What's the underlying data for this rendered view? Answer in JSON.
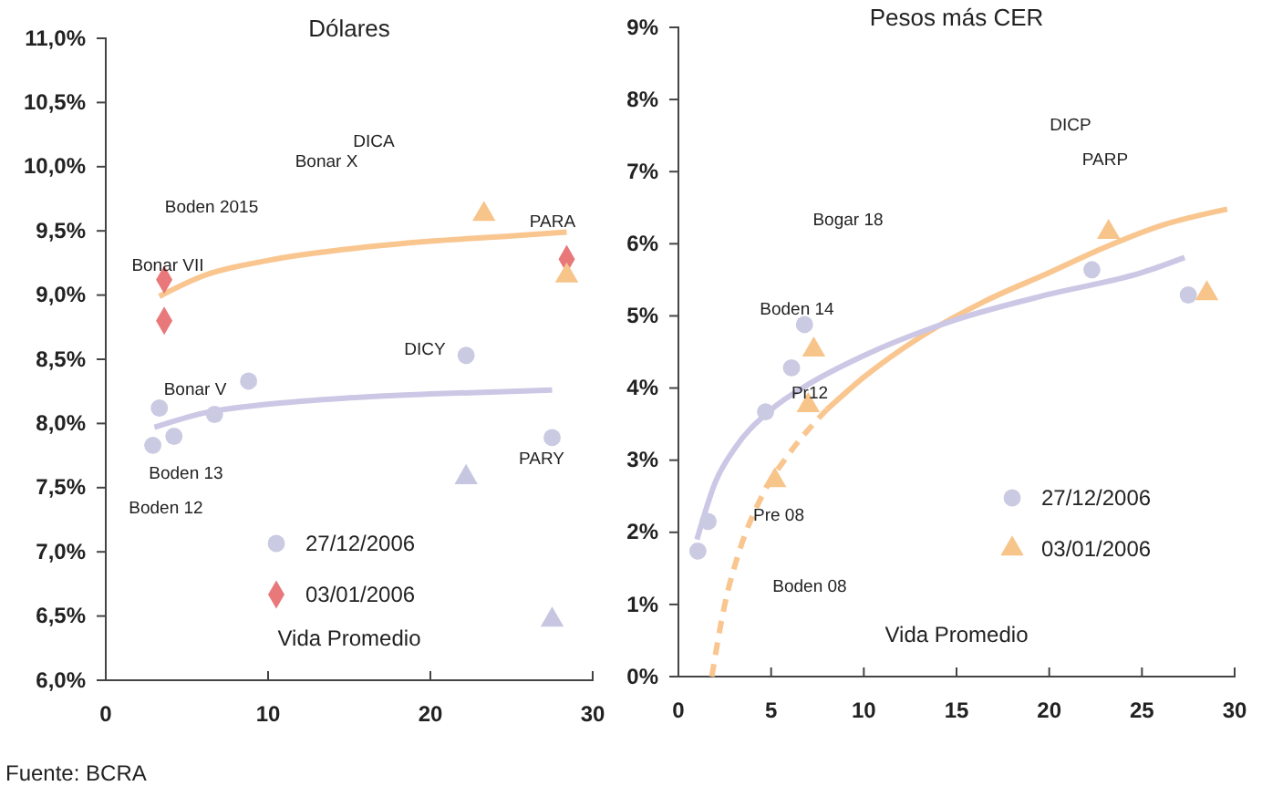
{
  "chart_data": [
    {
      "type": "scatter",
      "title": "Dólares",
      "xlabel": "Vida Promedio",
      "xlim": [
        0,
        30
      ],
      "xticks": [
        0,
        10,
        20,
        30
      ],
      "ylim": [
        6.0,
        11.0
      ],
      "yticks": [
        {
          "value": 6.0,
          "label": "6,0%"
        },
        {
          "value": 6.5,
          "label": "6,5%"
        },
        {
          "value": 7.0,
          "label": "7,0%"
        },
        {
          "value": 7.5,
          "label": "7,5%"
        },
        {
          "value": 8.0,
          "label": "8,0%"
        },
        {
          "value": 8.5,
          "label": "8,5%"
        },
        {
          "value": 9.0,
          "label": "9,0%"
        },
        {
          "value": 9.5,
          "label": "9,5%"
        },
        {
          "value": 10.0,
          "label": "10,0%"
        },
        {
          "value": 10.5,
          "label": "10,5%"
        },
        {
          "value": 11.0,
          "label": "11,0%"
        }
      ],
      "grid": false,
      "legend": "bottom",
      "series": [
        {
          "type": "line",
          "color": "#f9c690",
          "line_style": "solid",
          "x": [
            3.3,
            6,
            10,
            15,
            20,
            25,
            28.4
          ],
          "values": [
            8.99,
            9.15,
            9.27,
            9.36,
            9.42,
            9.46,
            9.49
          ]
        },
        {
          "type": "line",
          "color": "#cbc7e5",
          "line_style": "solid",
          "x": [
            3,
            6,
            10,
            15,
            20,
            27.5
          ],
          "values": [
            7.97,
            8.08,
            8.15,
            8.2,
            8.23,
            8.26
          ]
        },
        {
          "type": "scatter",
          "name": "27/12/2006",
          "color": "#cacae2",
          "marker": "circle",
          "x": [
            3.3,
            2.9,
            4.2,
            6.7,
            8.8,
            22.2,
            27.5
          ],
          "values": [
            8.12,
            7.83,
            7.9,
            8.07,
            8.33,
            8.53,
            7.89
          ]
        },
        {
          "type": "scatter",
          "name": "03/01/2006",
          "color": "#e8787a",
          "marker": "diamond",
          "x": [
            3.6,
            3.6,
            28.4
          ],
          "values": [
            9.12,
            8.8,
            9.28
          ]
        },
        {
          "type": "scatter",
          "color": "#f7c48a",
          "marker": "triangle",
          "x": [
            23.3,
            28.4
          ],
          "values": [
            9.63,
            9.15
          ]
        },
        {
          "type": "scatter",
          "color": "#c6c6e0",
          "marker": "triangle",
          "x": [
            22.2,
            27.5
          ],
          "values": [
            7.58,
            6.47
          ]
        }
      ],
      "annotations": [
        "DICA",
        "Bonar X",
        "Boden 2015",
        "PARA",
        "Bonar VII",
        "DICY",
        "Bonar V",
        "PARY",
        "Boden 13",
        "Boden 12",
        "Fuente: BCRA"
      ]
    },
    {
      "type": "scatter",
      "title": "Pesos más CER",
      "xlabel": "Vida Promedio",
      "xlim": [
        0,
        30
      ],
      "xticks": [
        0,
        5,
        10,
        15,
        20,
        25,
        30
      ],
      "ylim": [
        0,
        9
      ],
      "yticks": [
        {
          "value": 0,
          "label": "0%"
        },
        {
          "value": 1,
          "label": "1%"
        },
        {
          "value": 2,
          "label": "2%"
        },
        {
          "value": 3,
          "label": "3%"
        },
        {
          "value": 4,
          "label": "4%"
        },
        {
          "value": 5,
          "label": "5%"
        },
        {
          "value": 6,
          "label": "6%"
        },
        {
          "value": 7,
          "label": "7%"
        },
        {
          "value": 8,
          "label": "8%"
        },
        {
          "value": 9,
          "label": "9%"
        }
      ],
      "grid": false,
      "legend": "right",
      "series": [
        {
          "type": "line",
          "color": "#f9c690",
          "line_style": "dashed",
          "x": [
            1.8,
            2.5,
            3.3,
            4.5,
            6,
            8
          ],
          "values": [
            0,
            1.0,
            1.75,
            2.5,
            3.1,
            3.7
          ]
        },
        {
          "type": "line",
          "color": "#f9c690",
          "line_style": "solid",
          "x": [
            8,
            10,
            13,
            16.5,
            20,
            23,
            26,
            29.6
          ],
          "values": [
            3.7,
            4.15,
            4.7,
            5.2,
            5.6,
            5.95,
            6.25,
            6.48
          ]
        },
        {
          "type": "line",
          "color": "#cbc7e5",
          "line_style": "solid",
          "x": [
            1,
            2,
            3,
            5,
            7,
            10,
            15,
            20,
            25,
            27.3
          ],
          "values": [
            1.9,
            2.7,
            3.15,
            3.7,
            4.05,
            4.45,
            4.95,
            5.3,
            5.6,
            5.81
          ]
        },
        {
          "type": "scatter",
          "name": "27/12/2006",
          "color": "#cacae2",
          "marker": "circle",
          "x": [
            1.05,
            1.6,
            4.7,
            6.1,
            6.8,
            22.3,
            27.5
          ],
          "values": [
            1.74,
            2.15,
            3.67,
            4.28,
            4.88,
            5.64,
            5.29
          ]
        },
        {
          "type": "scatter",
          "name": "03/01/2006",
          "color": "#f7c48a",
          "marker": "triangle",
          "x": [
            5.2,
            7.0,
            7.3,
            23.2,
            28.5
          ],
          "values": [
            2.72,
            3.76,
            4.53,
            6.16,
            5.31
          ]
        }
      ],
      "annotations": [
        "DICP",
        "PARP",
        "Bogar 18",
        "Boden 14",
        "Pr12",
        "Pre 08",
        "Boden 08"
      ]
    }
  ]
}
